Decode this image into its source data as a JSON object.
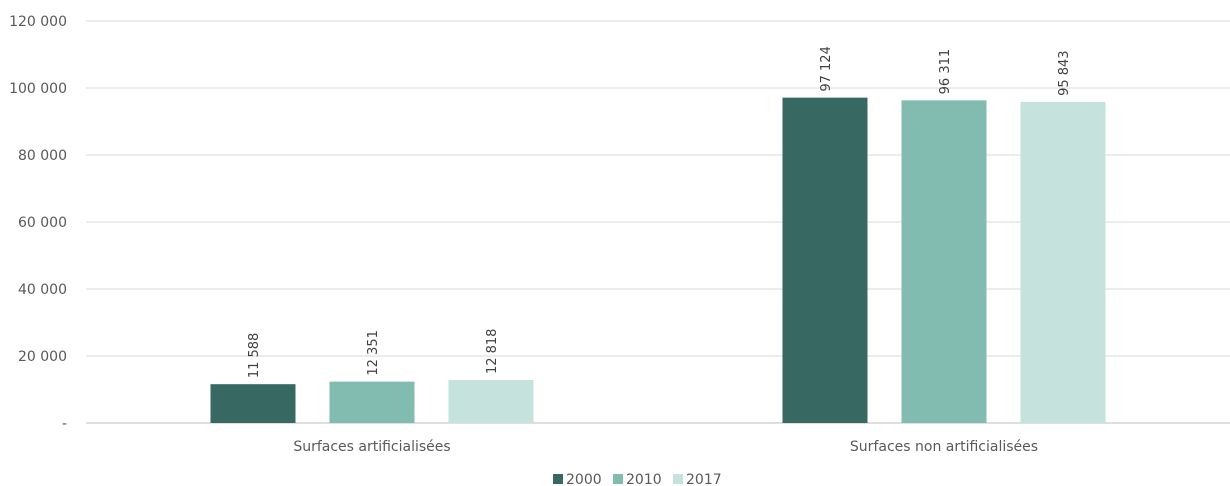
{
  "chart_data": {
    "type": "bar",
    "title": "",
    "xlabel": "",
    "ylabel": "",
    "ylim": [
      0,
      120000
    ],
    "yticks": [
      {
        "value": 0,
        "label": "-"
      },
      {
        "value": 20000,
        "label": "20 000"
      },
      {
        "value": 40000,
        "label": "40 000"
      },
      {
        "value": 60000,
        "label": "60 000"
      },
      {
        "value": 80000,
        "label": "80 000"
      },
      {
        "value": 100000,
        "label": "100 000"
      },
      {
        "value": 120000,
        "label": "120 000"
      }
    ],
    "grid": true,
    "legend_position": "bottom",
    "categories": [
      "Surfaces artificialisées",
      "Surfaces non artificialisées"
    ],
    "series": [
      {
        "name": "2000",
        "color": "#376861",
        "values": [
          11588,
          97124
        ],
        "labels": [
          "11 588",
          "97 124"
        ]
      },
      {
        "name": "2010",
        "color": "#82bbb0",
        "values": [
          12351,
          96311
        ],
        "labels": [
          "12 351",
          "96 311"
        ]
      },
      {
        "name": "2017",
        "color": "#c5e2dc",
        "values": [
          12818,
          95843
        ],
        "labels": [
          "12 818",
          "95 843"
        ]
      }
    ]
  }
}
